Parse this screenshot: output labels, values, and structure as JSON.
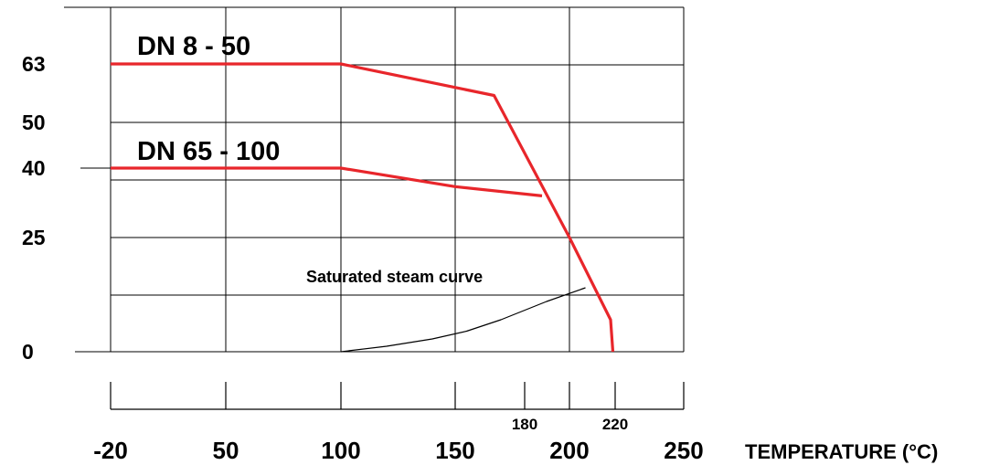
{
  "chart_data": {
    "type": "line",
    "xlabel": "TEMPERATURE (°C)",
    "ylabel": "",
    "x_ticks": [
      "-20",
      "50",
      "100",
      "150",
      "200",
      "250"
    ],
    "x_minor_labels": [
      "180",
      "220"
    ],
    "y_ticks": [
      "0",
      "25",
      "40",
      "50",
      "63"
    ],
    "grid": true,
    "series": [
      {
        "name": "DN 8 - 50",
        "color": "#e8262b",
        "x": [
          -20,
          100,
          167,
          200,
          218,
          219
        ],
        "y": [
          63,
          63,
          56,
          25,
          7,
          0
        ]
      },
      {
        "name": "DN 65 - 100",
        "color": "#e8262b",
        "x": [
          -20,
          100,
          150,
          188
        ],
        "y": [
          40,
          40,
          36,
          34
        ]
      },
      {
        "name": "Saturated steam curve",
        "color": "#000000",
        "x": [
          100,
          120,
          140,
          155,
          170,
          190,
          207
        ],
        "y": [
          0,
          1.2,
          2.8,
          4.5,
          7,
          11,
          14
        ]
      }
    ]
  }
}
